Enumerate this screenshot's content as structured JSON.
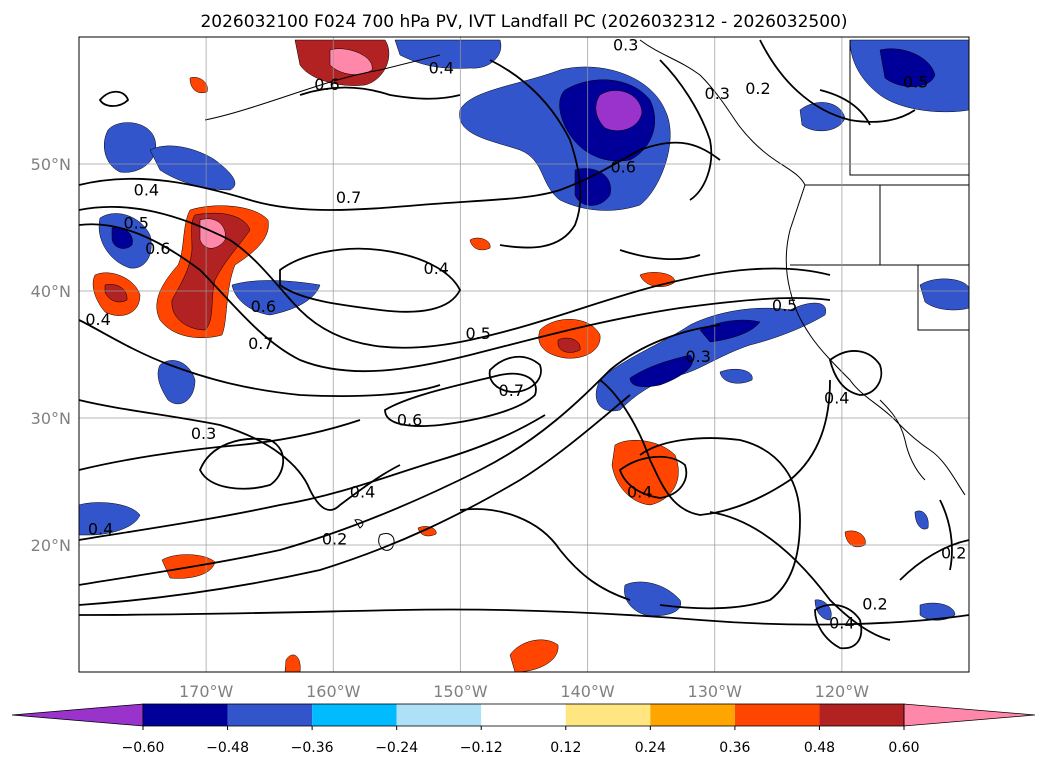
{
  "title": "2026032100 F024 700 hPa PV, IVT Landfall PC (2026032312 - 2026032500)",
  "map": {
    "lon_range": [
      -180,
      -110
    ],
    "lat_range": [
      10,
      60
    ],
    "lon_ticks": [
      {
        "value": -170,
        "label": "170°W"
      },
      {
        "value": -160,
        "label": "160°W"
      },
      {
        "value": -150,
        "label": "150°W"
      },
      {
        "value": -140,
        "label": "140°W"
      },
      {
        "value": -130,
        "label": "130°W"
      },
      {
        "value": -120,
        "label": "120°W"
      }
    ],
    "lat_ticks": [
      {
        "value": 50,
        "label": "50°N"
      },
      {
        "value": 40,
        "label": "40°N"
      },
      {
        "value": 30,
        "label": "30°N"
      },
      {
        "value": 20,
        "label": "20°N"
      }
    ],
    "grid": true,
    "contour_labels": [
      {
        "text": "0.3",
        "lon": -137,
        "lat": 59.4
      },
      {
        "text": "0.6",
        "lon": -160.5,
        "lat": 56.3
      },
      {
        "text": "0.4",
        "lon": -151.5,
        "lat": 57.6
      },
      {
        "text": "0.3",
        "lon": -129.8,
        "lat": 55.6
      },
      {
        "text": "0.2",
        "lon": -126.6,
        "lat": 56.0
      },
      {
        "text": "0.5",
        "lon": -114.2,
        "lat": 56.5
      },
      {
        "text": "0.7",
        "lon": -158.8,
        "lat": 47.4
      },
      {
        "text": "0.4",
        "lon": -174.7,
        "lat": 48.0
      },
      {
        "text": "0.5",
        "lon": -175.5,
        "lat": 45.4
      },
      {
        "text": "0.6",
        "lon": -173.8,
        "lat": 43.4
      },
      {
        "text": "0.6",
        "lon": -137.2,
        "lat": 49.8
      },
      {
        "text": "0.4",
        "lon": -151.9,
        "lat": 41.8
      },
      {
        "text": "0.6",
        "lon": -165.5,
        "lat": 38.8
      },
      {
        "text": "0.7",
        "lon": -165.7,
        "lat": 35.9
      },
      {
        "text": "0.4",
        "lon": -178.5,
        "lat": 37.8
      },
      {
        "text": "0.5",
        "lon": -148.6,
        "lat": 36.7
      },
      {
        "text": "0.7",
        "lon": -146.0,
        "lat": 32.2
      },
      {
        "text": "0.3",
        "lon": -131.3,
        "lat": 34.9
      },
      {
        "text": "0.5",
        "lon": -124.5,
        "lat": 38.9
      },
      {
        "text": "0.6",
        "lon": -154.0,
        "lat": 29.9
      },
      {
        "text": "0.3",
        "lon": -170.2,
        "lat": 28.8
      },
      {
        "text": "0.4",
        "lon": -157.7,
        "lat": 24.2
      },
      {
        "text": "0.4",
        "lon": -178.3,
        "lat": 21.3
      },
      {
        "text": "0.2",
        "lon": -159.9,
        "lat": 20.5
      },
      {
        "text": "0.4",
        "lon": -135.9,
        "lat": 24.2
      },
      {
        "text": "0.4",
        "lon": -120.4,
        "lat": 31.6
      },
      {
        "text": "0.2",
        "lon": -111.2,
        "lat": 19.4
      },
      {
        "text": "0.2",
        "lon": -117.4,
        "lat": 15.4
      },
      {
        "text": "0.4",
        "lon": -120.0,
        "lat": 13.9
      }
    ]
  },
  "colorbar": {
    "ticks": [
      "−0.60",
      "−0.48",
      "−0.36",
      "−0.24",
      "−0.12",
      "0.12",
      "0.24",
      "0.36",
      "0.48",
      "0.60"
    ],
    "colors": {
      "under": "#9933cc",
      "bins": [
        "#000099",
        "#3355cc",
        "#00bbff",
        "#aee0f8",
        "#ffffff",
        "#ffe680",
        "#ffa500",
        "#ff4500",
        "#b22222"
      ],
      "over": "#ff88aa"
    }
  }
}
